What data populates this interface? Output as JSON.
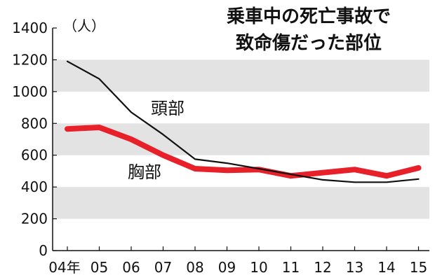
{
  "chart_data": {
    "type": "line",
    "title_lines": [
      "乗車中の死亡事故で",
      "致命傷だった部位"
    ],
    "unit": "（人）",
    "x": [
      "04年",
      "05",
      "06",
      "07",
      "08",
      "09",
      "10",
      "11",
      "12",
      "13",
      "14",
      "15"
    ],
    "yticks": [
      "0",
      "200",
      "400",
      "600",
      "800",
      "1000",
      "1200",
      "1400"
    ],
    "ylim": [
      0,
      1400
    ],
    "grid": "alternating gray horizontal bands",
    "series": [
      {
        "name": "頭部",
        "color": "#111111",
        "values": [
          1190,
          1080,
          870,
          730,
          575,
          550,
          515,
          480,
          445,
          430,
          430,
          450
        ]
      },
      {
        "name": "胸部",
        "color": "#e8202a",
        "values": [
          765,
          775,
          700,
          600,
          515,
          505,
          510,
          470,
          490,
          510,
          470,
          520
        ]
      }
    ]
  }
}
